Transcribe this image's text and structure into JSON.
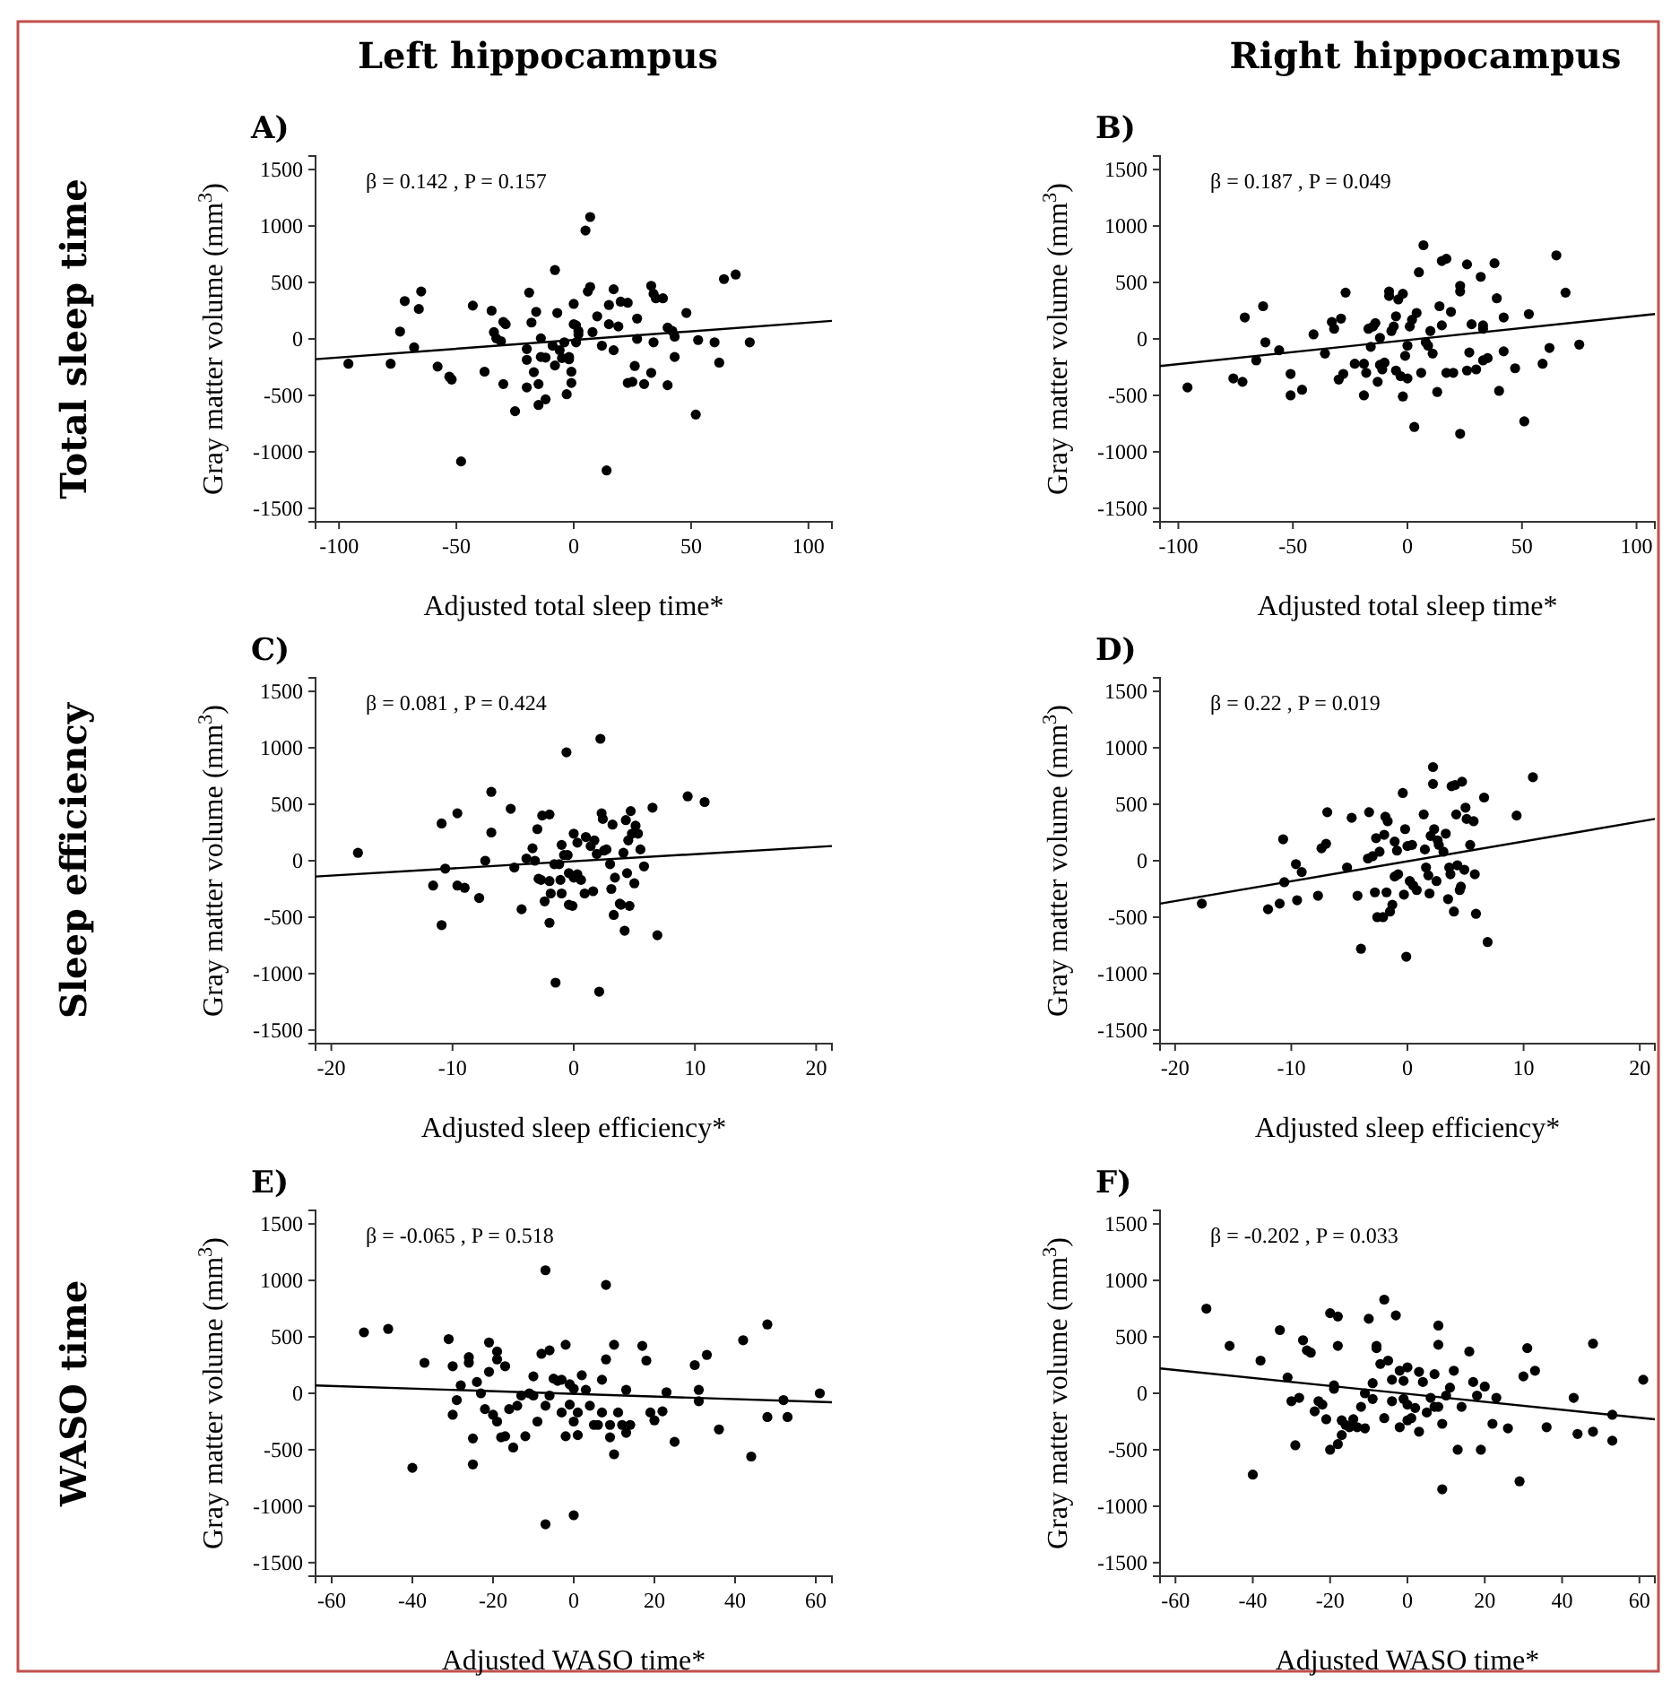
{
  "chart_data": [
    {
      "type": "scatter",
      "title": "A)",
      "subtitle": "Left hippocampus",
      "xlabel": "Adjusted total sleep time*",
      "ylabel": "Gray matter volume (mm$^{3}$)",
      "annotations": [
        "β = 0.142 ,  P  =  0.157",
        "Total sleep time"
      ],
      "xlim": [
        -110,
        110
      ],
      "ylim": [
        -1620,
        1620
      ],
      "xticks": [
        -100,
        -50,
        0,
        50,
        100
      ],
      "yticks": [
        -1500,
        -1000,
        -500,
        0,
        500,
        1000,
        1500
      ],
      "series": [
        {
          "marker": "circle",
          "color": "#000000",
          "x": [
            -96,
            -78,
            -74,
            -72,
            -68,
            -65,
            -66,
            -58,
            -53,
            -52,
            -48,
            -43,
            -38,
            -35,
            -34,
            -33,
            -30,
            -29,
            -30,
            -31,
            -25,
            -20,
            -20,
            -20,
            -19,
            -18,
            -17,
            -16,
            -15,
            -15,
            -14,
            -14,
            -12,
            -12,
            -9,
            -8,
            -8,
            -7,
            -2,
            -2,
            -1,
            -1,
            -3,
            0,
            1,
            2,
            5,
            7,
            7,
            8,
            6,
            10,
            12,
            14,
            15,
            15,
            17,
            17,
            19,
            20,
            23,
            23,
            25,
            27,
            27,
            26,
            30,
            33,
            34,
            33,
            34,
            35,
            38,
            40,
            40,
            42,
            43,
            43,
            48,
            52,
            53,
            60,
            62,
            64,
            69,
            75,
            -5,
            -4,
            -6,
            0,
            2,
            1
          ],
          "values": [
            -220,
            -220,
            65,
            335,
            -75,
            420,
            265,
            -245,
            -335,
            -360,
            -1085,
            295,
            -290,
            250,
            60,
            5,
            150,
            130,
            -400,
            -20,
            -640,
            -90,
            -185,
            -430,
            410,
            145,
            -295,
            240,
            -400,
            -585,
            5,
            -160,
            -165,
            -535,
            -60,
            610,
            -235,
            230,
            -160,
            -180,
            -290,
            -390,
            -490,
            310,
            120,
            40,
            960,
            1080,
            460,
            60,
            420,
            200,
            -60,
            -1165,
            130,
            300,
            440,
            -100,
            110,
            330,
            320,
            -390,
            -380,
            180,
            0,
            -240,
            -400,
            470,
            400,
            -300,
            -30,
            360,
            360,
            -410,
            100,
            70,
            -160,
            20,
            230,
            -670,
            -10,
            -30,
            -210,
            530,
            570,
            -30,
            -170,
            -30,
            -100,
            130,
            70,
            -30
          ]
        },
        {
          "type": "line",
          "color": "#000000",
          "x": [
            -110,
            110
          ],
          "values": [
            -180,
            160
          ]
        }
      ]
    },
    {
      "type": "scatter",
      "title": "B)",
      "subtitle": "Right hippocampus",
      "xlabel": "Adjusted total sleep time*",
      "ylabel": "Gray matter volume (mm$^{3}$)",
      "annotations": [
        "β = 0.187 ,  P  =  0.049"
      ],
      "xlim": [
        -108,
        108
      ],
      "ylim": [
        -1620,
        1620
      ],
      "xticks": [
        -100,
        -50,
        0,
        50,
        100
      ],
      "yticks": [
        -1500,
        -1000,
        -500,
        0,
        500,
        1000,
        1500
      ],
      "series": [
        {
          "marker": "circle",
          "color": "#000000",
          "x": [
            -96,
            -76,
            -72,
            -71,
            -66,
            -63,
            -62,
            -56,
            -51,
            -51,
            -46,
            -41,
            -36,
            -33,
            -32,
            -30,
            -29,
            -28,
            -27,
            -23,
            -19,
            -19,
            -18,
            -17,
            -16,
            -15,
            -14,
            -13,
            -12,
            -12,
            -11,
            -10,
            -8,
            -8,
            -7,
            -6,
            -5,
            -5,
            -4,
            -3,
            -2,
            -2,
            -1,
            0,
            0,
            1,
            2,
            3,
            4,
            5,
            6,
            7,
            8,
            9,
            10,
            11,
            13,
            14,
            15,
            15,
            17,
            17,
            19,
            20,
            23,
            23,
            23,
            26,
            26,
            27,
            28,
            30,
            32,
            33,
            33,
            33,
            35,
            38,
            39,
            40,
            42,
            42,
            47,
            51,
            53,
            59,
            62,
            65,
            69,
            75
          ],
          "values": [
            -430,
            -350,
            -380,
            190,
            -190,
            290,
            -30,
            -100,
            -310,
            -500,
            -450,
            40,
            -130,
            150,
            90,
            -360,
            180,
            -310,
            410,
            -220,
            -220,
            -500,
            -300,
            90,
            -70,
            110,
            140,
            -380,
            10,
            -230,
            -270,
            -210,
            380,
            420,
            70,
            110,
            -280,
            200,
            350,
            -330,
            400,
            -510,
            -150,
            -60,
            -350,
            110,
            170,
            -780,
            230,
            590,
            -300,
            830,
            -30,
            -60,
            70,
            -130,
            -470,
            290,
            690,
            120,
            710,
            -300,
            240,
            -300,
            470,
            420,
            -840,
            660,
            -280,
            -120,
            130,
            -270,
            550,
            120,
            90,
            -190,
            -170,
            670,
            360,
            -460,
            190,
            -110,
            -260,
            -730,
            220,
            -220,
            -80,
            740,
            410,
            -50
          ]
        },
        {
          "type": "line",
          "color": "#000000",
          "x": [
            -108,
            108
          ],
          "values": [
            -240,
            220
          ]
        }
      ]
    },
    {
      "type": "scatter",
      "title": "C)",
      "xlabel": "Adjusted sleep efficiency*",
      "ylabel": "Gray matter volume (mm$^{3}$)",
      "annotations": [
        "β = 0.081 ,  P  =  0.424",
        "Sleep efficiency"
      ],
      "xlim": [
        -21.3,
        21.3
      ],
      "ylim": [
        -1620,
        1620
      ],
      "xticks": [
        -20,
        -10,
        0,
        10,
        20
      ],
      "yticks": [
        -1500,
        -1000,
        -500,
        0,
        500,
        1000,
        1500
      ],
      "series": [
        {
          "marker": "circle",
          "color": "#000000",
          "x": [
            -17.8,
            -11.6,
            -10.9,
            -10.9,
            -10.6,
            -9.6,
            -9.6,
            -9,
            -7.8,
            -7.3,
            -6.8,
            -6.8,
            -5.2,
            -4.9,
            -4.3,
            -3.9,
            -3.4,
            -3.2,
            -3,
            -2.9,
            -2.7,
            -2.6,
            -2.4,
            -2,
            -2,
            -2,
            -1.9,
            -1.6,
            -1.2,
            -1.1,
            -1,
            -1,
            -0.8,
            -0.6,
            -0.5,
            -0.4,
            -0.4,
            -0.1,
            0,
            0,
            0.3,
            0.3,
            0.6,
            0.9,
            1,
            1.4,
            1.6,
            1.7,
            1.9,
            2.1,
            2.2,
            2.3,
            2.4,
            2.5,
            2.7,
            3,
            3.1,
            3.2,
            3.3,
            3.4,
            3.8,
            3.9,
            4.1,
            4.2,
            4.3,
            4.4,
            4.5,
            4.6,
            4.7,
            4.8,
            5,
            5.1,
            5.3,
            5.5,
            5.8,
            6.5,
            6.9,
            9.4,
            10.8,
            -1.5
          ],
          "values": [
            70,
            -220,
            330,
            -570,
            -70,
            420,
            -220,
            -240,
            -330,
            0,
            610,
            250,
            460,
            -60,
            -430,
            20,
            110,
            0,
            280,
            -160,
            -170,
            400,
            -360,
            410,
            -550,
            -180,
            -290,
            -30,
            -30,
            -170,
            140,
            -290,
            50,
            960,
            50,
            -110,
            -390,
            -400,
            240,
            -150,
            -120,
            160,
            -170,
            -290,
            210,
            130,
            -270,
            180,
            60,
            -1160,
            1080,
            420,
            370,
            90,
            100,
            -30,
            -250,
            320,
            -480,
            -150,
            -380,
            -390,
            70,
            -620,
            360,
            -110,
            180,
            -400,
            440,
            240,
            -200,
            310,
            240,
            100,
            -50,
            470,
            -660,
            570,
            520,
            -1080
          ]
        },
        {
          "type": "line",
          "color": "#000000",
          "x": [
            -21.3,
            21.3
          ],
          "values": [
            -140,
            130
          ]
        }
      ]
    },
    {
      "type": "scatter",
      "title": "D)",
      "xlabel": "Adjusted sleep efficiency*",
      "ylabel": "Gray matter volume (mm$^{3}$)",
      "annotations": [
        "β = 0.22 ,  P  =  0.019"
      ],
      "xlim": [
        -21.3,
        21.3
      ],
      "ylim": [
        -1620,
        1620
      ],
      "xticks": [
        -20,
        -10,
        0,
        10,
        20
      ],
      "yticks": [
        -1500,
        -1000,
        -500,
        0,
        500,
        1000,
        1500
      ],
      "series": [
        {
          "marker": "circle",
          "color": "#000000",
          "x": [
            -17.7,
            -12,
            -11,
            -10.7,
            -10.6,
            -9.6,
            -9.5,
            -9.1,
            -7.7,
            -7.4,
            -7,
            -6.9,
            -5.2,
            -4.8,
            -4.3,
            -4,
            -3.4,
            -3.3,
            -3,
            -2.8,
            -2.7,
            -2.6,
            -2.4,
            -2.1,
            -2,
            -1.9,
            -1.8,
            -1.7,
            -1.5,
            -1.3,
            -1.1,
            -1.1,
            -0.9,
            -0.8,
            -0.4,
            -0.3,
            -0.2,
            -0.1,
            0,
            0.2,
            0.4,
            0.5,
            0.8,
            1.4,
            1.5,
            1.6,
            1.8,
            1.9,
            2,
            2.2,
            2.2,
            2.3,
            2.5,
            2.6,
            2.7,
            3.1,
            3.3,
            3.5,
            3.6,
            3.7,
            3.8,
            4,
            4.1,
            4.2,
            4.3,
            4.5,
            4.6,
            4.7,
            4.9,
            5,
            5.1,
            5.4,
            5.7,
            5.8,
            5.9,
            6.6,
            6.9,
            9.4,
            10.8
          ],
          "values": [
            -380,
            -430,
            -380,
            190,
            -190,
            -30,
            -350,
            -100,
            -310,
            110,
            150,
            430,
            -60,
            380,
            -310,
            -780,
            20,
            430,
            40,
            -280,
            200,
            -500,
            80,
            -500,
            230,
            390,
            -280,
            350,
            -450,
            -390,
            170,
            -140,
            90,
            -120,
            600,
            -300,
            280,
            -850,
            130,
            -180,
            140,
            -220,
            -260,
            410,
            100,
            -60,
            -130,
            -290,
            220,
            680,
            830,
            280,
            -180,
            180,
            140,
            80,
            240,
            -340,
            -60,
            -120,
            660,
            -450,
            670,
            410,
            -40,
            -260,
            -230,
            700,
            -80,
            470,
            370,
            140,
            350,
            -120,
            -470,
            560,
            -720,
            400,
            740
          ]
        },
        {
          "type": "line",
          "color": "#000000",
          "x": [
            -21.3,
            21.3
          ],
          "values": [
            -380,
            370
          ]
        }
      ]
    },
    {
      "type": "scatter",
      "title": "E)",
      "xlabel": "Adjusted WASO time*",
      "ylabel": "Gray matter volume (mm$^{3}$)",
      "annotations": [
        "β = -0.065 ,  P  =  0.518",
        "WASO time"
      ],
      "xlim": [
        -64,
        64
      ],
      "ylim": [
        -1620,
        1620
      ],
      "xticks": [
        -60,
        -40,
        -20,
        0,
        20,
        40,
        60
      ],
      "yticks": [
        -1500,
        -1000,
        -500,
        0,
        500,
        1000,
        1500
      ],
      "series": [
        {
          "marker": "circle",
          "color": "#000000",
          "x": [
            -52,
            -46,
            -40,
            -37,
            -31,
            -30,
            -30,
            -29,
            -28,
            -26,
            -26,
            -25,
            -25,
            -24,
            -23,
            -22,
            -21,
            -21,
            -20,
            -19,
            -19,
            -19,
            -18,
            -17,
            -17,
            -16,
            -15,
            -14,
            -13,
            -12,
            -11,
            -10,
            -10,
            -9,
            -8,
            -7,
            -7,
            -7,
            -6,
            -6,
            -5,
            -4,
            -3,
            -3,
            -2,
            -2,
            -1,
            -1,
            0,
            0,
            0,
            1,
            1,
            2,
            3,
            4,
            5,
            6,
            7,
            7,
            8,
            8,
            9,
            9,
            10,
            10,
            11,
            12,
            13,
            13,
            14,
            17,
            18,
            19,
            20,
            22,
            23,
            25,
            30,
            31,
            31,
            33,
            36,
            42,
            44,
            48,
            48,
            52,
            53,
            61
          ],
          "values": [
            540,
            570,
            -660,
            270,
            480,
            240,
            -190,
            -60,
            70,
            320,
            270,
            -400,
            -630,
            100,
            0,
            -140,
            450,
            190,
            -190,
            370,
            300,
            -250,
            -390,
            -380,
            240,
            -140,
            -480,
            -110,
            -20,
            -380,
            0,
            150,
            -20,
            -250,
            350,
            -110,
            1090,
            -1160,
            -20,
            380,
            130,
            110,
            120,
            -170,
            430,
            -380,
            80,
            -100,
            40,
            -250,
            -1080,
            -170,
            -370,
            160,
            30,
            -110,
            -280,
            -280,
            120,
            -170,
            960,
            300,
            -280,
            -390,
            430,
            -540,
            -170,
            -280,
            30,
            -350,
            -280,
            420,
            290,
            -170,
            -240,
            -160,
            10,
            -430,
            250,
            30,
            -70,
            340,
            -320,
            470,
            -560,
            610,
            -210,
            -60,
            -210,
            0
          ]
        },
        {
          "type": "line",
          "color": "#000000",
          "x": [
            -64,
            64
          ],
          "values": [
            70,
            -80
          ]
        }
      ]
    },
    {
      "type": "scatter",
      "title": "F)",
      "xlabel": "Adjusted WASO time*",
      "ylabel": "Gray matter volume (mm$^{3}$)",
      "annotations": [
        "β = -0.202 ,  P  =  0.033"
      ],
      "xlim": [
        -64,
        64
      ],
      "ylim": [
        -1620,
        1620
      ],
      "xticks": [
        -60,
        -40,
        -20,
        0,
        20,
        40,
        60
      ],
      "yticks": [
        -1500,
        -1000,
        -500,
        0,
        500,
        1000,
        1500
      ],
      "series": [
        {
          "marker": "circle",
          "color": "#000000",
          "x": [
            -52,
            -46,
            -40,
            -38,
            -33,
            -31,
            -30,
            -29,
            -28,
            -27,
            -26,
            -25,
            -24,
            -23,
            -22,
            -21,
            -20,
            -20,
            -19,
            -19,
            -18,
            -18,
            -18,
            -17,
            -17,
            -16,
            -15,
            -14,
            -13,
            -12,
            -11,
            -11,
            -10,
            -9,
            -9,
            -8,
            -8,
            -7,
            -6,
            -6,
            -5,
            -4,
            -4,
            -3,
            -2,
            -2,
            -1,
            -1,
            0,
            0,
            0,
            1,
            2,
            3,
            3,
            4,
            5,
            6,
            7,
            7,
            8,
            8,
            8,
            9,
            9,
            10,
            11,
            12,
            13,
            14,
            16,
            17,
            18,
            19,
            20,
            22,
            23,
            26,
            29,
            30,
            31,
            33,
            36,
            43,
            44,
            48,
            48,
            53,
            53,
            61
          ],
          "values": [
            750,
            420,
            -720,
            290,
            560,
            140,
            -70,
            -460,
            -40,
            470,
            380,
            360,
            -160,
            -70,
            -100,
            -230,
            710,
            -500,
            70,
            40,
            680,
            420,
            -450,
            -370,
            -240,
            -280,
            -300,
            -230,
            -300,
            -120,
            0,
            -310,
            660,
            90,
            -50,
            420,
            400,
            260,
            830,
            -220,
            290,
            120,
            -70,
            690,
            -300,
            200,
            -50,
            110,
            230,
            -100,
            -240,
            -220,
            -130,
            190,
            -340,
            100,
            -170,
            -40,
            -120,
            170,
            600,
            430,
            -120,
            -270,
            -850,
            -20,
            50,
            200,
            -500,
            -120,
            370,
            100,
            -20,
            -500,
            60,
            -270,
            -40,
            -310,
            -780,
            150,
            400,
            200,
            -300,
            -40,
            -360,
            440,
            -340,
            -190,
            -420,
            120
          ]
        },
        {
          "type": "line",
          "color": "#000000",
          "x": [
            -64,
            64
          ],
          "values": [
            220,
            -230
          ]
        }
      ]
    }
  ]
}
